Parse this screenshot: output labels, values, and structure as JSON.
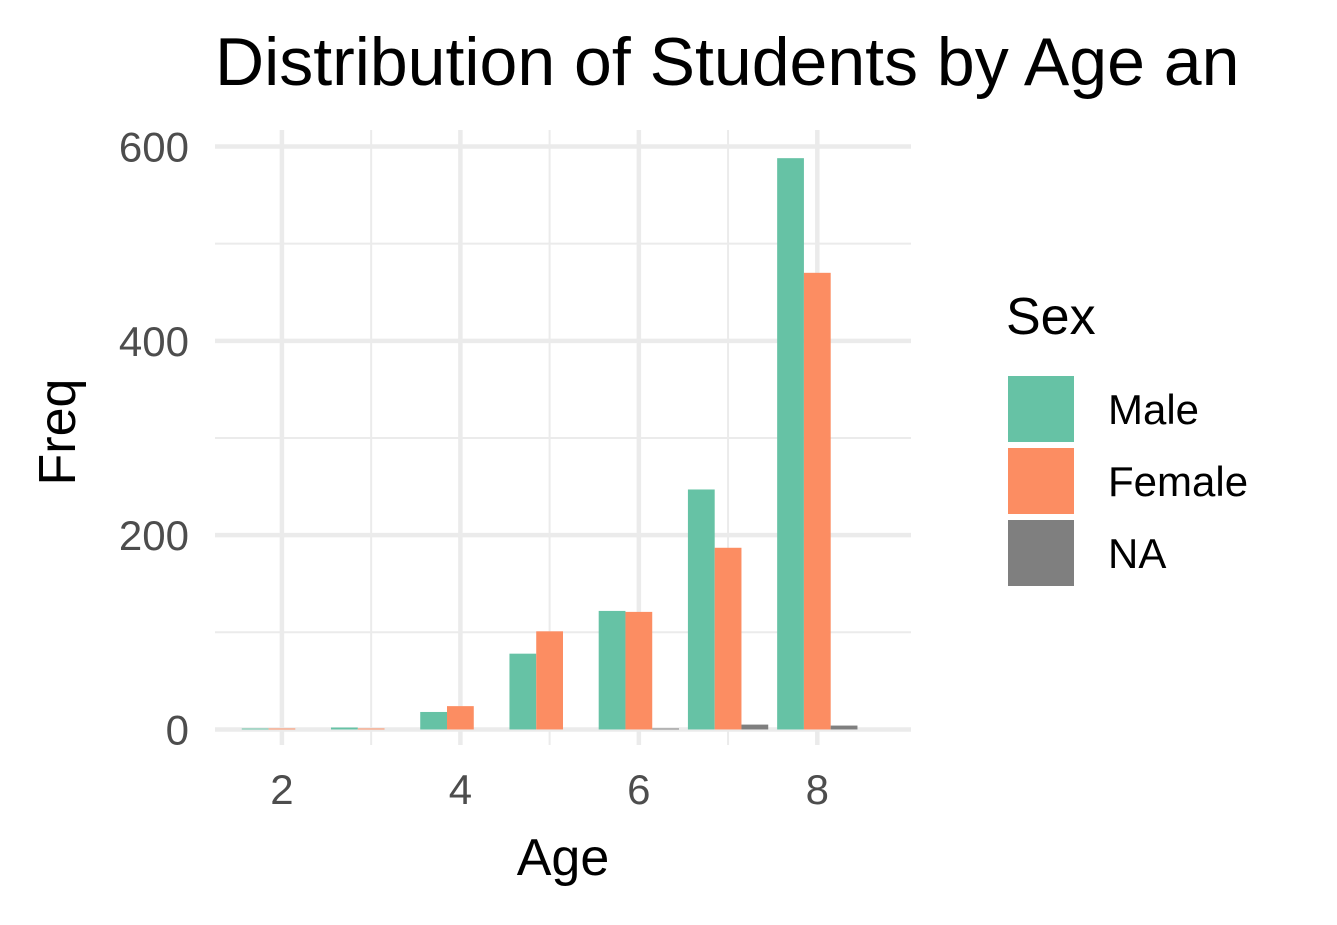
{
  "chart_data": {
    "type": "bar",
    "title": "Distribution of Students by Age an",
    "xlabel": "Age",
    "ylabel": "Freq",
    "x": [
      2,
      3,
      4,
      5,
      6,
      7,
      8
    ],
    "xticks": [
      "2",
      "4",
      "6",
      "8"
    ],
    "xtick_values": [
      2,
      4,
      6,
      8
    ],
    "yticks": [
      "0",
      "200",
      "400",
      "600"
    ],
    "ytick_values": [
      0,
      200,
      400,
      600
    ],
    "xlim": [
      1.25,
      9.05
    ],
    "ylim": [
      -16,
      617
    ],
    "grid": true,
    "legend_title": "Sex",
    "legend_position": "right",
    "series": [
      {
        "name": "Male",
        "color": "#66C2A5",
        "values": [
          1,
          2,
          18,
          78,
          122,
          247,
          588
        ]
      },
      {
        "name": "Female",
        "color": "#FC8D62",
        "values": [
          1,
          1,
          24,
          101,
          121,
          187,
          470
        ]
      },
      {
        "name": "NA",
        "color": "#7F7F7F",
        "values": [
          0,
          0,
          0,
          0,
          1,
          5,
          4
        ]
      }
    ]
  }
}
